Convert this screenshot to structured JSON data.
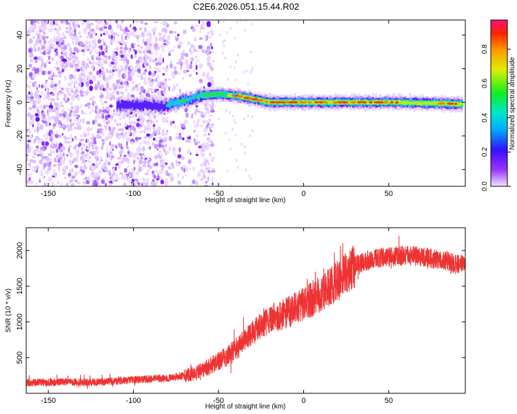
{
  "title": "C2E6.2026.051.15.44.R02",
  "colors": {
    "snr_line": "#ee3333",
    "spectrum_background": "#ffffff"
  },
  "chart_data": [
    {
      "type": "heatmap",
      "name": "spectrogram",
      "xlabel": "Height of straight line (km)",
      "ylabel": "Frequency (Hz)",
      "xlim": [
        -163,
        95
      ],
      "ylim": [
        -50,
        49
      ],
      "xticks": [
        -150,
        -100,
        -50,
        0,
        50
      ],
      "yticks": [
        -40,
        -20,
        0,
        20,
        40
      ],
      "grid": false,
      "colorbar": {
        "label": "Normalized spectral amplitude",
        "range": [
          0,
          0.97
        ],
        "ticks": [
          0.0,
          0.2,
          0.4,
          0.6,
          0.8
        ],
        "colormap": "rainbow (purple-blue-cyan-green-yellow-red-pink)"
      },
      "description_points": {
        "signal_center_frequency": [
          [
            -110,
            -2
          ],
          [
            -80,
            -2
          ],
          [
            -70,
            1
          ],
          [
            -60,
            4
          ],
          [
            -50,
            5
          ],
          [
            -40,
            4
          ],
          [
            -30,
            2
          ],
          [
            -20,
            0
          ],
          [
            -10,
            0
          ],
          [
            0,
            0
          ],
          [
            25,
            0
          ],
          [
            50,
            0
          ],
          [
            93,
            -1
          ]
        ]
      }
    },
    {
      "type": "line",
      "name": "snr",
      "xlabel": "Height of straight line (km)",
      "ylabel": "SNR (10 * v/v)",
      "xlim": [
        -163,
        95
      ],
      "ylim": [
        0,
        2320
      ],
      "xticks": [
        -150,
        -100,
        -50,
        0,
        50
      ],
      "yticks": [
        500,
        1000,
        1500,
        2000
      ],
      "grid": false,
      "series": [
        {
          "name": "SNR",
          "x": [
            -163,
            -150,
            -140,
            -130,
            -120,
            -110,
            -100,
            -90,
            -80,
            -70,
            -65,
            -60,
            -55,
            -50,
            -45,
            -40,
            -35,
            -30,
            -25,
            -20,
            -15,
            -10,
            -5,
            0,
            5,
            10,
            15,
            20,
            25,
            30,
            35,
            40,
            45,
            50,
            55,
            60,
            65,
            70,
            75,
            80,
            85,
            90,
            95
          ],
          "values": [
            150,
            150,
            160,
            150,
            160,
            170,
            190,
            200,
            210,
            250,
            270,
            320,
            380,
            450,
            520,
            620,
            730,
            850,
            950,
            1020,
            1080,
            1120,
            1180,
            1250,
            1320,
            1400,
            1480,
            1580,
            1680,
            1780,
            1840,
            1880,
            1900,
            1910,
            1920,
            1930,
            1920,
            1910,
            1890,
            1880,
            1850,
            1800,
            1830
          ]
        }
      ]
    }
  ]
}
